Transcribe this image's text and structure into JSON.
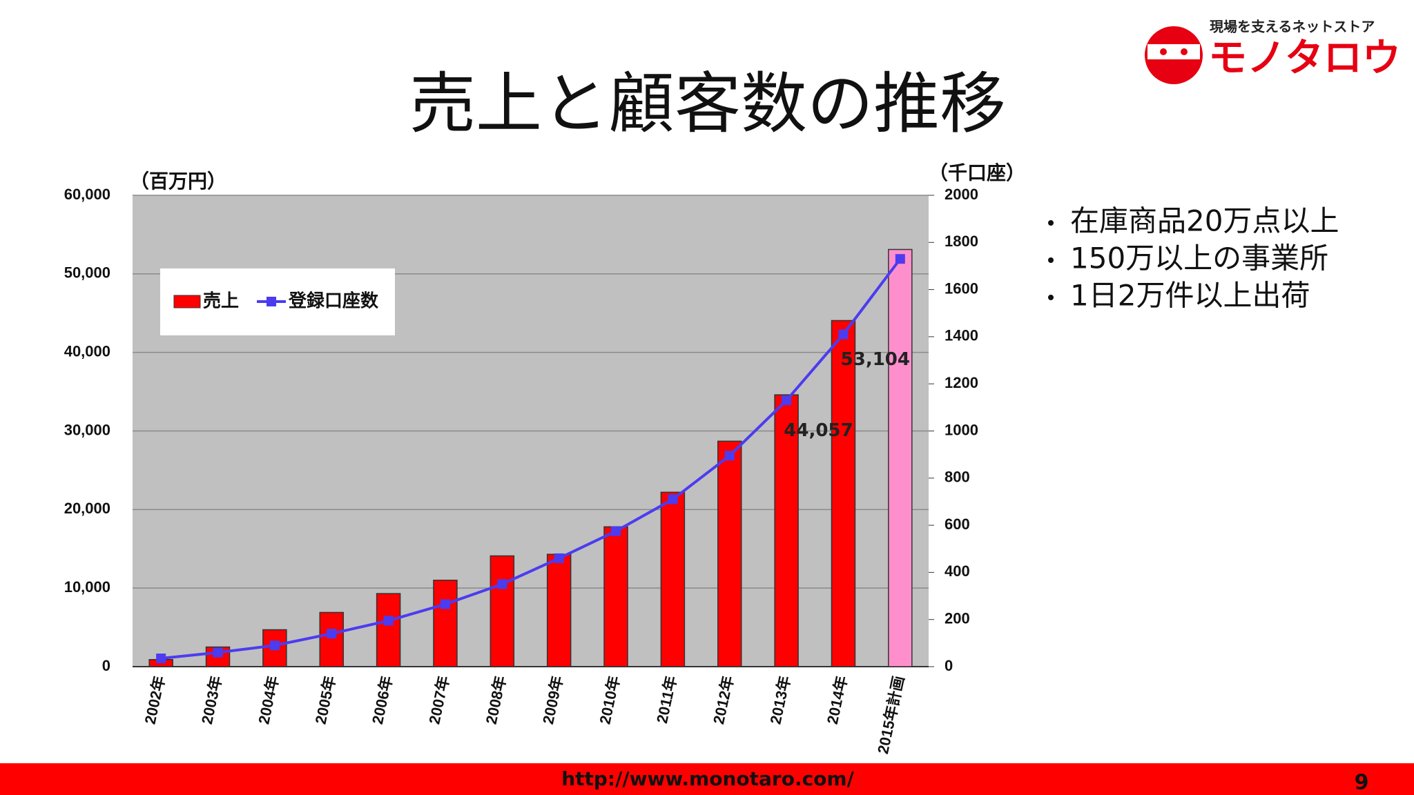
{
  "header": {
    "tagline": "現場を支えるネットストア",
    "brand": "モノタロウ"
  },
  "chart_data": {
    "type": "bar_line",
    "title": "売上と顧客数の推移",
    "y_label": "（百万円）",
    "y2_label": "（千口座）",
    "categories": [
      "2002年",
      "2003年",
      "2004年",
      "2005年",
      "2006年",
      "2007年",
      "2008年",
      "2009年",
      "2010年",
      "2011年",
      "2012年",
      "2013年",
      "2014年",
      "2015年計画"
    ],
    "series": [
      {
        "name": "売上",
        "color": "#ff0000",
        "colors": [
          "#ff0000",
          "#ff0000",
          "#ff0000",
          "#ff0000",
          "#ff0000",
          "#ff0000",
          "#ff0000",
          "#ff0000",
          "#ff0000",
          "#ff0000",
          "#ff0000",
          "#ff0000",
          "#ff0000",
          "#ff8fcc"
        ],
        "values": [
          900,
          2500,
          4700,
          6900,
          9300,
          11000,
          14100,
          14300,
          17800,
          22200,
          28700,
          34600,
          44057,
          53104
        ],
        "value_labels": [
          null,
          null,
          null,
          null,
          null,
          null,
          null,
          null,
          null,
          null,
          null,
          null,
          "44,057",
          "53,104"
        ]
      },
      {
        "name": "登録口座数",
        "color": "#4b3cf0",
        "axis": "y2",
        "values": [
          35,
          60,
          90,
          140,
          195,
          265,
          350,
          460,
          575,
          710,
          895,
          1130,
          1410,
          1730
        ]
      }
    ],
    "ylim": [
      0,
      60000
    ],
    "yticks": [
      0,
      {
        "value": 10000,
        "label": "10,000"
      },
      {
        "value": 20000,
        "label": "20,000"
      },
      {
        "value": 30000,
        "label": "30,000"
      },
      {
        "value": 40000,
        "label": "40,000"
      },
      {
        "value": 50000,
        "label": "50,000"
      },
      {
        "value": 60000,
        "label": "60,000"
      }
    ],
    "y2lim": [
      0,
      2000
    ],
    "y2ticks": [
      0,
      200,
      400,
      600,
      800,
      1000,
      1200,
      1400,
      1600,
      1800,
      2000
    ],
    "grid": true,
    "legend": "upper left"
  },
  "bullets": [
    "在庫商品20万点以上",
    "150万以上の事業所",
    "1日2万件以上出荷"
  ],
  "footer": {
    "url": "http://www.monotaro.com/",
    "page": "9"
  }
}
